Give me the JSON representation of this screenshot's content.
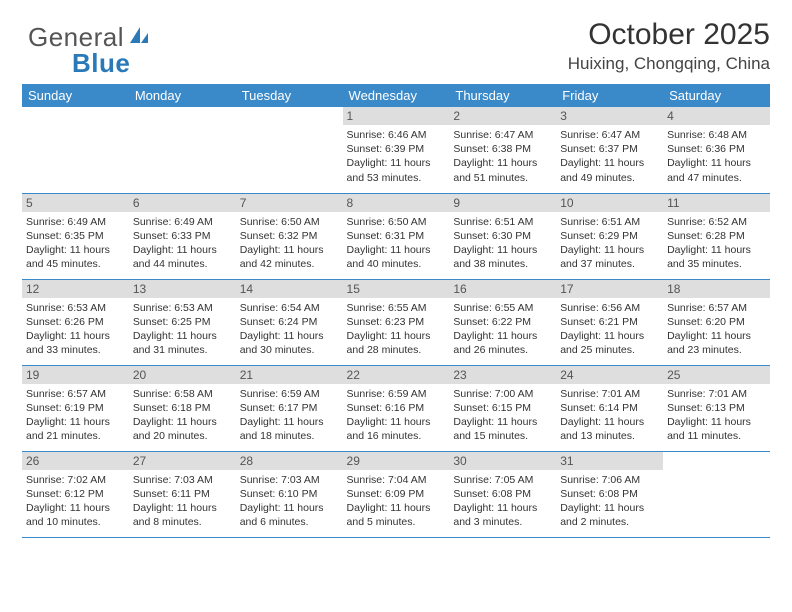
{
  "logo": {
    "text1": "General",
    "text2": "Blue"
  },
  "title": "October 2025",
  "location": "Huixing, Chongqing, China",
  "colors": {
    "header_bg": "#3a89c9",
    "header_fg": "#ffffff",
    "daynum_bg": "#dedede",
    "border": "#3a89c9"
  },
  "weekdays": [
    "Sunday",
    "Monday",
    "Tuesday",
    "Wednesday",
    "Thursday",
    "Friday",
    "Saturday"
  ],
  "weeks": [
    [
      null,
      null,
      null,
      {
        "n": "1",
        "sr": "6:46 AM",
        "ss": "6:39 PM",
        "dl": "11 hours and 53 minutes."
      },
      {
        "n": "2",
        "sr": "6:47 AM",
        "ss": "6:38 PM",
        "dl": "11 hours and 51 minutes."
      },
      {
        "n": "3",
        "sr": "6:47 AM",
        "ss": "6:37 PM",
        "dl": "11 hours and 49 minutes."
      },
      {
        "n": "4",
        "sr": "6:48 AM",
        "ss": "6:36 PM",
        "dl": "11 hours and 47 minutes."
      }
    ],
    [
      {
        "n": "5",
        "sr": "6:49 AM",
        "ss": "6:35 PM",
        "dl": "11 hours and 45 minutes."
      },
      {
        "n": "6",
        "sr": "6:49 AM",
        "ss": "6:33 PM",
        "dl": "11 hours and 44 minutes."
      },
      {
        "n": "7",
        "sr": "6:50 AM",
        "ss": "6:32 PM",
        "dl": "11 hours and 42 minutes."
      },
      {
        "n": "8",
        "sr": "6:50 AM",
        "ss": "6:31 PM",
        "dl": "11 hours and 40 minutes."
      },
      {
        "n": "9",
        "sr": "6:51 AM",
        "ss": "6:30 PM",
        "dl": "11 hours and 38 minutes."
      },
      {
        "n": "10",
        "sr": "6:51 AM",
        "ss": "6:29 PM",
        "dl": "11 hours and 37 minutes."
      },
      {
        "n": "11",
        "sr": "6:52 AM",
        "ss": "6:28 PM",
        "dl": "11 hours and 35 minutes."
      }
    ],
    [
      {
        "n": "12",
        "sr": "6:53 AM",
        "ss": "6:26 PM",
        "dl": "11 hours and 33 minutes."
      },
      {
        "n": "13",
        "sr": "6:53 AM",
        "ss": "6:25 PM",
        "dl": "11 hours and 31 minutes."
      },
      {
        "n": "14",
        "sr": "6:54 AM",
        "ss": "6:24 PM",
        "dl": "11 hours and 30 minutes."
      },
      {
        "n": "15",
        "sr": "6:55 AM",
        "ss": "6:23 PM",
        "dl": "11 hours and 28 minutes."
      },
      {
        "n": "16",
        "sr": "6:55 AM",
        "ss": "6:22 PM",
        "dl": "11 hours and 26 minutes."
      },
      {
        "n": "17",
        "sr": "6:56 AM",
        "ss": "6:21 PM",
        "dl": "11 hours and 25 minutes."
      },
      {
        "n": "18",
        "sr": "6:57 AM",
        "ss": "6:20 PM",
        "dl": "11 hours and 23 minutes."
      }
    ],
    [
      {
        "n": "19",
        "sr": "6:57 AM",
        "ss": "6:19 PM",
        "dl": "11 hours and 21 minutes."
      },
      {
        "n": "20",
        "sr": "6:58 AM",
        "ss": "6:18 PM",
        "dl": "11 hours and 20 minutes."
      },
      {
        "n": "21",
        "sr": "6:59 AM",
        "ss": "6:17 PM",
        "dl": "11 hours and 18 minutes."
      },
      {
        "n": "22",
        "sr": "6:59 AM",
        "ss": "6:16 PM",
        "dl": "11 hours and 16 minutes."
      },
      {
        "n": "23",
        "sr": "7:00 AM",
        "ss": "6:15 PM",
        "dl": "11 hours and 15 minutes."
      },
      {
        "n": "24",
        "sr": "7:01 AM",
        "ss": "6:14 PM",
        "dl": "11 hours and 13 minutes."
      },
      {
        "n": "25",
        "sr": "7:01 AM",
        "ss": "6:13 PM",
        "dl": "11 hours and 11 minutes."
      }
    ],
    [
      {
        "n": "26",
        "sr": "7:02 AM",
        "ss": "6:12 PM",
        "dl": "11 hours and 10 minutes."
      },
      {
        "n": "27",
        "sr": "7:03 AM",
        "ss": "6:11 PM",
        "dl": "11 hours and 8 minutes."
      },
      {
        "n": "28",
        "sr": "7:03 AM",
        "ss": "6:10 PM",
        "dl": "11 hours and 6 minutes."
      },
      {
        "n": "29",
        "sr": "7:04 AM",
        "ss": "6:09 PM",
        "dl": "11 hours and 5 minutes."
      },
      {
        "n": "30",
        "sr": "7:05 AM",
        "ss": "6:08 PM",
        "dl": "11 hours and 3 minutes."
      },
      {
        "n": "31",
        "sr": "7:06 AM",
        "ss": "6:08 PM",
        "dl": "11 hours and 2 minutes."
      },
      null
    ]
  ],
  "labels": {
    "sunrise": "Sunrise: ",
    "sunset": "Sunset: ",
    "daylight": "Daylight: "
  }
}
